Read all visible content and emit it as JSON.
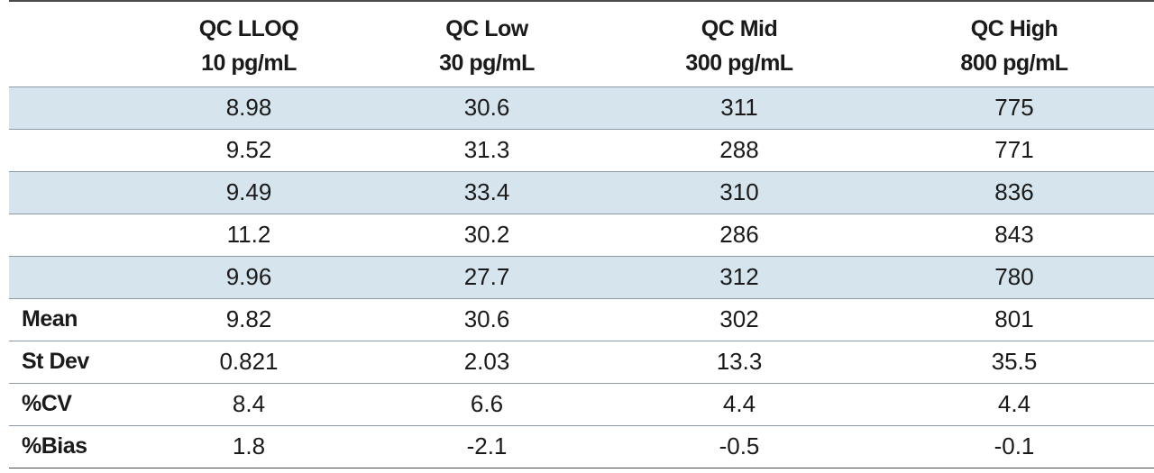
{
  "table": {
    "columns": [
      {
        "name": "",
        "concentration": ""
      },
      {
        "name": "QC LLOQ",
        "concentration": "10 pg/mL"
      },
      {
        "name": "QC Low",
        "concentration": "30 pg/mL"
      },
      {
        "name": "QC Mid",
        "concentration": "300 pg/mL"
      },
      {
        "name": "QC High",
        "concentration": "800 pg/mL"
      }
    ],
    "rows": [
      {
        "label": "",
        "values": [
          "8.98",
          "30.6",
          "311",
          "775"
        ]
      },
      {
        "label": "",
        "values": [
          "9.52",
          "31.3",
          "288",
          "771"
        ]
      },
      {
        "label": "",
        "values": [
          "9.49",
          "33.4",
          "310",
          "836"
        ]
      },
      {
        "label": "",
        "values": [
          "11.2",
          "30.2",
          "286",
          "843"
        ]
      },
      {
        "label": "",
        "values": [
          "9.96",
          "27.7",
          "312",
          "780"
        ]
      },
      {
        "label": "Mean",
        "values": [
          "9.82",
          "30.6",
          "302",
          "801"
        ]
      },
      {
        "label": "St Dev",
        "values": [
          "0.821",
          "2.03",
          "13.3",
          "35.5"
        ]
      },
      {
        "label": "%CV",
        "values": [
          "8.4",
          "6.6",
          "4.4",
          "4.4"
        ]
      },
      {
        "label": "%Bias",
        "values": [
          "1.8",
          "-2.1",
          "-0.5",
          "-0.1"
        ]
      }
    ]
  },
  "colors": {
    "shaded_row": "#d6e4ee",
    "rule": "#8a9aa8",
    "border": "#4a4a4a"
  }
}
